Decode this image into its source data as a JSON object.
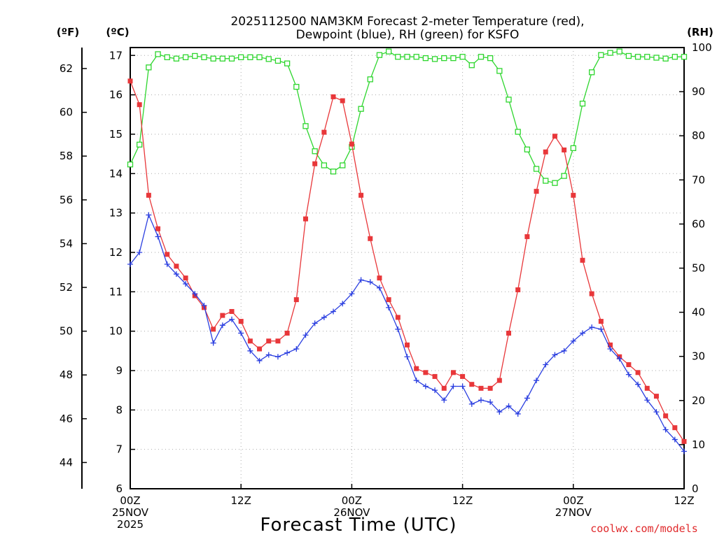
{
  "chart_data": {
    "type": "line",
    "title_line1": "2025112500 NAM3KM Forecast 2-meter Temperature (red),",
    "title_line2": "Dewpoint (blue), RH (green) for KSFO",
    "xlabel": "Forecast Time (UTC)",
    "credit": "coolwx.com/models",
    "x_range_hours": [
      0,
      60
    ],
    "x_ticks": [
      {
        "hour": 0,
        "lines": [
          "00Z",
          "25NOV",
          "2025"
        ]
      },
      {
        "hour": 12,
        "lines": [
          "12Z"
        ]
      },
      {
        "hour": 24,
        "lines": [
          "00Z",
          "26NOV"
        ]
      },
      {
        "hour": 36,
        "lines": [
          "12Z"
        ]
      },
      {
        "hour": 48,
        "lines": [
          "00Z",
          "27NOV"
        ]
      },
      {
        "hour": 60,
        "lines": [
          "12Z"
        ]
      }
    ],
    "left_axis_c": {
      "unit_label": "(ºC)",
      "range": [
        6,
        17.2
      ],
      "ticks": [
        "6",
        "7",
        "8",
        "9",
        "10",
        "11",
        "12",
        "13",
        "14",
        "15",
        "16",
        "17"
      ]
    },
    "left_axis_f": {
      "unit_label": "(ºF)",
      "ticks": [
        "44",
        "46",
        "48",
        "50",
        "52",
        "54",
        "56",
        "58",
        "60",
        "62"
      ]
    },
    "right_axis_rh": {
      "unit_label": "(RH)",
      "range": [
        0,
        100
      ],
      "ticks": [
        "0",
        "10",
        "20",
        "30",
        "40",
        "50",
        "60",
        "70",
        "80",
        "90",
        "100"
      ]
    },
    "series": [
      {
        "name": "Temperature",
        "unit": "C",
        "color": "#e8373a",
        "marker": "filled-square",
        "x": [
          0,
          1,
          2,
          3,
          4,
          5,
          6,
          7,
          8,
          9,
          10,
          11,
          12,
          13,
          14,
          15,
          16,
          17,
          18,
          19,
          20,
          21,
          22,
          23,
          24,
          25,
          26,
          27,
          28,
          29,
          30,
          31,
          32,
          33,
          34,
          35,
          36,
          37,
          38,
          39,
          40,
          41,
          42,
          43,
          44,
          45,
          46,
          47,
          48,
          49,
          50,
          51,
          52,
          53,
          54,
          55,
          56,
          57,
          58,
          59,
          60
        ],
        "values": [
          16.35,
          15.75,
          13.45,
          12.6,
          11.95,
          11.65,
          11.35,
          10.9,
          10.6,
          10.05,
          10.4,
          10.5,
          10.25,
          9.75,
          9.55,
          9.75,
          9.75,
          9.95,
          10.8,
          12.85,
          14.25,
          15.05,
          15.95,
          15.85,
          14.75,
          13.45,
          12.35,
          11.35,
          10.8,
          10.35,
          9.65,
          9.05,
          8.95,
          8.85,
          8.55,
          8.95,
          8.85,
          8.65,
          8.55,
          8.55,
          8.75,
          9.95,
          11.05,
          12.4,
          13.55,
          14.55,
          14.95,
          14.6,
          13.45,
          11.8,
          10.95,
          10.25,
          9.65,
          9.35,
          9.15,
          8.95,
          8.55,
          8.35,
          7.85,
          7.55,
          7.2
        ]
      },
      {
        "name": "Dewpoint",
        "unit": "C",
        "color": "#2a3ee0",
        "marker": "plus",
        "x": [
          0,
          1,
          2,
          3,
          4,
          5,
          6,
          7,
          8,
          9,
          10,
          11,
          12,
          13,
          14,
          15,
          16,
          17,
          18,
          19,
          20,
          21,
          22,
          23,
          24,
          25,
          26,
          27,
          28,
          29,
          30,
          31,
          32,
          33,
          34,
          35,
          36,
          37,
          38,
          39,
          40,
          41,
          42,
          43,
          44,
          45,
          46,
          47,
          48,
          49,
          50,
          51,
          52,
          53,
          54,
          55,
          56,
          57,
          58,
          59,
          60
        ],
        "values": [
          11.7,
          12.0,
          12.95,
          12.4,
          11.7,
          11.45,
          11.2,
          10.95,
          10.65,
          9.7,
          10.15,
          10.3,
          9.95,
          9.5,
          9.25,
          9.4,
          9.35,
          9.45,
          9.55,
          9.9,
          10.2,
          10.35,
          10.5,
          10.7,
          10.95,
          11.3,
          11.25,
          11.1,
          10.6,
          10.05,
          9.35,
          8.75,
          8.6,
          8.5,
          8.25,
          8.6,
          8.6,
          8.15,
          8.25,
          8.2,
          7.95,
          8.1,
          7.9,
          8.3,
          8.75,
          9.15,
          9.4,
          9.5,
          9.75,
          9.95,
          10.1,
          10.05,
          9.55,
          9.3,
          8.9,
          8.65,
          8.25,
          7.95,
          7.5,
          7.25,
          6.95
        ]
      },
      {
        "name": "Relative Humidity",
        "unit": "%",
        "color": "#2ed62e",
        "marker": "open-square",
        "x": [
          0,
          1,
          2,
          3,
          4,
          5,
          6,
          7,
          8,
          9,
          10,
          11,
          12,
          13,
          14,
          15,
          16,
          17,
          18,
          19,
          20,
          21,
          22,
          23,
          24,
          25,
          26,
          27,
          28,
          29,
          30,
          31,
          32,
          33,
          34,
          35,
          36,
          37,
          38,
          39,
          40,
          41,
          42,
          43,
          44,
          45,
          46,
          47,
          48,
          49,
          50,
          51,
          52,
          53,
          54,
          55,
          56,
          57,
          58,
          59,
          60
        ],
        "values": [
          73.5,
          78,
          95.5,
          98.5,
          97.8,
          97.5,
          97.8,
          98.1,
          97.8,
          97.5,
          97.5,
          97.5,
          97.8,
          97.8,
          97.8,
          97.4,
          97,
          96.4,
          91.1,
          82.2,
          76.5,
          73.3,
          71.9,
          73.3,
          77.5,
          86.1,
          92.8,
          98.3,
          99.1,
          97.9,
          97.9,
          97.9,
          97.6,
          97.4,
          97.6,
          97.6,
          97.9,
          96,
          97.9,
          97.6,
          94.7,
          88.2,
          80.9,
          76.9,
          72.5,
          69.8,
          69.3,
          70.9,
          77.2,
          87.3,
          94.4,
          98.3,
          98.8,
          99.1,
          98.1,
          97.9,
          97.9,
          97.7,
          97.5,
          97.9,
          97.9
        ]
      }
    ]
  }
}
